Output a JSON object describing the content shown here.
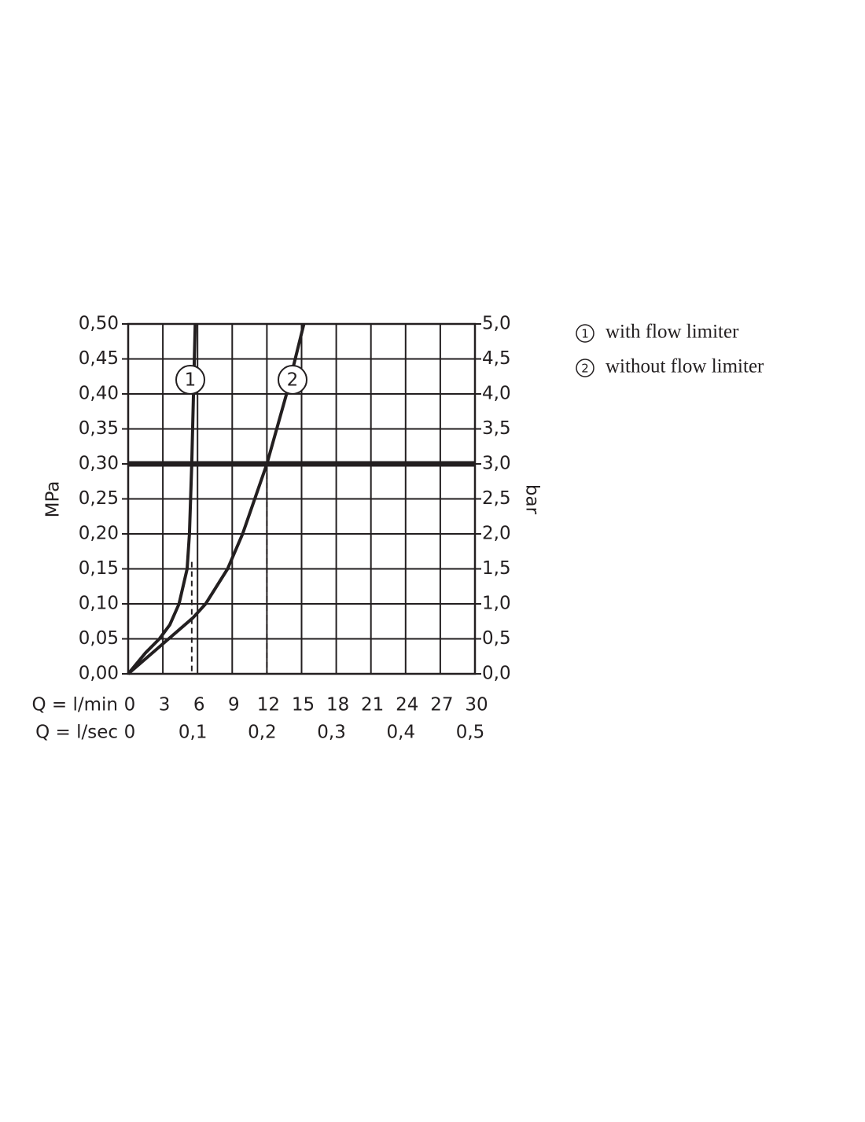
{
  "chart_data": {
    "type": "line",
    "xlabel": "Q = l/min",
    "x2label": "Q = l/sec",
    "ylabel": "MPa",
    "y2label": "bar",
    "xlim": [
      0,
      30
    ],
    "xticks": [
      0,
      3,
      6,
      9,
      12,
      15,
      18,
      21,
      24,
      27,
      30
    ],
    "x2lim": [
      0,
      0.5
    ],
    "x2ticks": [
      0,
      {
        "value": 0.1,
        "label": "0,1"
      },
      {
        "value": 0.2,
        "label": "0,2"
      },
      {
        "value": 0.3,
        "label": "0,3"
      },
      {
        "value": 0.4,
        "label": "0,4"
      },
      {
        "value": 0.5,
        "label": "0,5"
      }
    ],
    "ylim": [
      0,
      0.5
    ],
    "yticks": [
      {
        "value": 0,
        "label": "0,00"
      },
      {
        "value": 0.05,
        "label": "0,05"
      },
      {
        "value": 0.1,
        "label": "0,10"
      },
      {
        "value": 0.15,
        "label": "0,15"
      },
      {
        "value": 0.2,
        "label": "0,20"
      },
      {
        "value": 0.25,
        "label": "0,25"
      },
      {
        "value": 0.3,
        "label": "0,30"
      },
      {
        "value": 0.35,
        "label": "0,35"
      },
      {
        "value": 0.4,
        "label": "0,40"
      },
      {
        "value": 0.45,
        "label": "0,45"
      },
      {
        "value": 0.5,
        "label": "0,50"
      }
    ],
    "y2lim": [
      0,
      5
    ],
    "y2ticks": [
      {
        "value": 0,
        "label": "0,0"
      },
      {
        "value": 0.5,
        "label": "0,5"
      },
      {
        "value": 1,
        "label": "1,0"
      },
      {
        "value": 1.5,
        "label": "1,5"
      },
      {
        "value": 2,
        "label": "2,0"
      },
      {
        "value": 2.5,
        "label": "2,5"
      },
      {
        "value": 3,
        "label": "3,0"
      },
      {
        "value": 3.5,
        "label": "3,5"
      },
      {
        "value": 4,
        "label": "4,0"
      },
      {
        "value": 4.5,
        "label": "4,5"
      },
      {
        "value": 5,
        "label": "5,0"
      }
    ],
    "grid": true,
    "color": "#231f20",
    "reference_line": 0.3,
    "drop_lines": [
      {
        "x": 5.5,
        "y": 0.16
      },
      {
        "x": 12,
        "y": 0.3
      }
    ],
    "series": [
      {
        "name": "with flow limiter",
        "label": "1",
        "color": "#231f20",
        "x": [
          0,
          1.5,
          2.7,
          3.6,
          4.4,
          5.1,
          5.3,
          5.5,
          5.65,
          5.8
        ],
        "values": [
          0,
          0.03,
          0.05,
          0.07,
          0.1,
          0.15,
          0.2,
          0.3,
          0.4,
          0.5
        ]
      },
      {
        "name": "without flow limiter",
        "label": "2",
        "color": "#231f20",
        "x": [
          0,
          3.5,
          5.6,
          6.7,
          8.6,
          9.9,
          12,
          13.7,
          15.2
        ],
        "values": [
          0,
          0.05,
          0.08,
          0.1,
          0.15,
          0.2,
          0.3,
          0.4,
          0.5
        ]
      }
    ]
  }
}
